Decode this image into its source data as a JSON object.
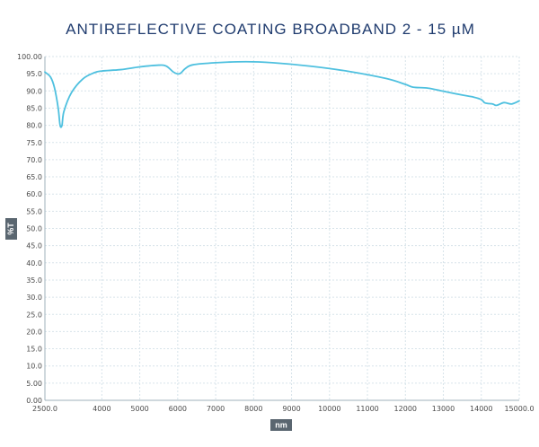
{
  "chart_data": {
    "type": "line",
    "title": "ANTIREFLECTIVE COATING BROADBAND 2 - 15 µM",
    "xlabel": "nm",
    "ylabel": "%T",
    "xlim": [
      2500,
      15000
    ],
    "ylim": [
      0,
      100
    ],
    "grid": true,
    "x_ticks": [
      2500,
      4000,
      5000,
      6000,
      7000,
      8000,
      9000,
      10000,
      11000,
      12000,
      13000,
      14000,
      15000
    ],
    "x_tick_labels": [
      "2500.0",
      "4000",
      "5000",
      "6000",
      "7000",
      "8000",
      "9000",
      "10000",
      "11000",
      "12000",
      "13000",
      "14000",
      "15000.0"
    ],
    "y_ticks": [
      0,
      5,
      10,
      15,
      20,
      25,
      30,
      35,
      40,
      45,
      50,
      55,
      60,
      65,
      70,
      75,
      80,
      85,
      90,
      95,
      100
    ],
    "y_tick_labels": [
      "0.00",
      "5.00",
      "10.0",
      "15.0",
      "20.0",
      "25.0",
      "30.0",
      "35.0",
      "40.0",
      "45.0",
      "50.0",
      "55.0",
      "60.0",
      "65.0",
      "70.0",
      "75.0",
      "80.0",
      "85.0",
      "90.0",
      "95.0",
      "100.00"
    ],
    "series": [
      {
        "color": "#4ec0df",
        "x": [
          2500,
          2650,
          2750,
          2850,
          2900,
          2950,
          3000,
          3200,
          3500,
          3800,
          4000,
          4500,
          5000,
          5500,
          5700,
          5900,
          6050,
          6200,
          6400,
          7000,
          7800,
          8500,
          9500,
          10500,
          11500,
          12000,
          12200,
          12600,
          13000,
          13500,
          13800,
          14000,
          14100,
          14300,
          14400,
          14600,
          14800,
          15000
        ],
        "y": [
          95.5,
          94,
          91,
          85,
          80,
          80,
          84,
          89.5,
          93.5,
          95.3,
          95.8,
          96.2,
          97,
          97.5,
          97.2,
          95.4,
          95,
          96.5,
          97.6,
          98.2,
          98.5,
          98.2,
          97.2,
          95.7,
          93.6,
          91.9,
          91.1,
          90.8,
          89.9,
          88.8,
          88.2,
          87.5,
          86.5,
          86.2,
          85.8,
          86.6,
          86.2,
          87.1
        ]
      }
    ]
  }
}
